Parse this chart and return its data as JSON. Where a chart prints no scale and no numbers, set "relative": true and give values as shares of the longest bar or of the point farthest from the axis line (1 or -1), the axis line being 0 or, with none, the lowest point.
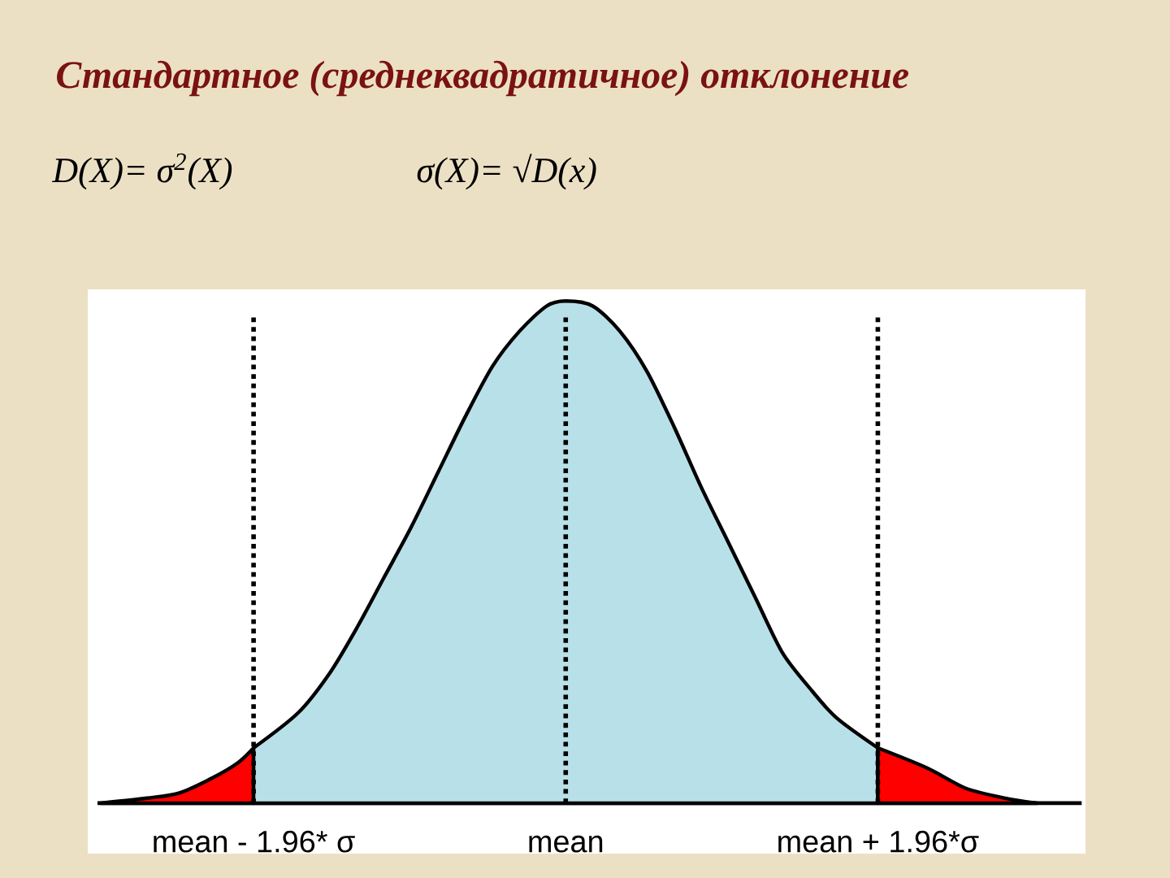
{
  "chart_data": {
    "type": "area",
    "title": "Стандартное (среднеквадратичное) отклонение",
    "annotations": [
      "D(X)= σ$^{2}$(X)",
      "σ(X)= √D(x)"
    ],
    "relative": true,
    "xlim": [
      -2.94,
      3.24
    ],
    "xticks": [
      {
        "value": -1.96,
        "label": "mean - 1.96* σ"
      },
      {
        "value": 0,
        "label": "mean"
      },
      {
        "value": 1.96,
        "label": "mean + 1.96*σ"
      }
    ],
    "series": [
      {
        "color": "#ff0000",
        "x": [
          -2.92,
          -2.63,
          -2.43,
          -2.22,
          -2.06,
          -1.96
        ],
        "values": [
          0,
          0.01,
          0.02,
          0.05,
          0.08,
          0.11
        ]
      },
      {
        "color": "#b8e0e8",
        "x": [
          -1.96,
          -1.68,
          -1.48,
          -1.31,
          -1.14,
          -0.97,
          -0.8,
          -0.63,
          -0.46,
          -0.29,
          -0.12,
          0,
          0.17,
          0.34,
          0.51,
          0.68,
          0.85,
          1.02,
          1.19,
          1.36,
          1.53,
          1.7,
          1.96
        ],
        "values": [
          0.11,
          0.18,
          0.26,
          0.35,
          0.45,
          0.55,
          0.66,
          0.77,
          0.87,
          0.94,
          0.99,
          1,
          0.99,
          0.94,
          0.86,
          0.75,
          0.63,
          0.52,
          0.41,
          0.3,
          0.23,
          0.17,
          0.11
        ]
      },
      {
        "color": "#ff0000",
        "x": [
          1.96,
          2.27,
          2.51,
          2.76,
          2.96
        ],
        "values": [
          0.11,
          0.07,
          0.03,
          0.01,
          0
        ]
      }
    ],
    "ref_lines": [
      {
        "axis": "x",
        "value": -1.96,
        "line_style": "dotted",
        "color": "#000000"
      },
      {
        "axis": "x",
        "value": 0,
        "line_style": "dotted",
        "color": "#000000"
      },
      {
        "axis": "x",
        "value": 1.96,
        "line_style": "dotted",
        "color": "#000000"
      }
    ]
  }
}
